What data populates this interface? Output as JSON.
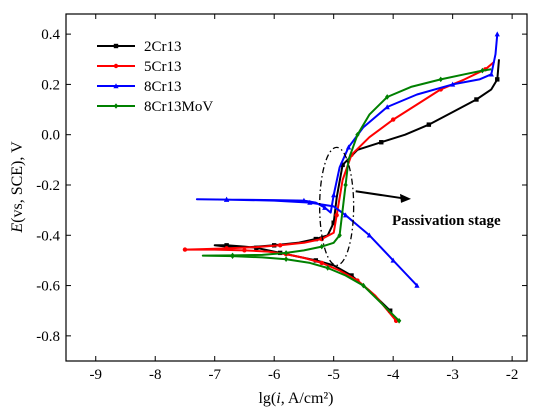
{
  "chart_data": {
    "type": "line",
    "xlabel": "lg(i, A/cm²)",
    "ylabel": "E(vs, SCE), V",
    "xlim": [
      -9.5,
      -1.75
    ],
    "ylim": [
      -0.9,
      0.48
    ],
    "xticks": [
      -9,
      -8,
      -7,
      -6,
      -5,
      -4,
      -3,
      -2
    ],
    "yticks": [
      -0.8,
      -0.6,
      -0.4,
      -0.2,
      0.0,
      0.2,
      0.4
    ],
    "xtick_labels": [
      "-9",
      "-8",
      "-7",
      "-6",
      "-5",
      "-4",
      "-3",
      "-2"
    ],
    "ytick_labels": [
      "-0.8",
      "-0.6",
      "-0.4",
      "-0.2",
      "0.0",
      "0.2",
      "0.4"
    ],
    "legend_position": "top-left",
    "annotation": "Passivation stage",
    "series": [
      {
        "name": "2Cr13",
        "color": "#000000",
        "marker": "square",
        "points": [
          [
            -4.05,
            -0.7
          ],
          [
            -4.4,
            -0.62
          ],
          [
            -4.7,
            -0.56
          ],
          [
            -5.0,
            -0.52
          ],
          [
            -5.3,
            -0.5
          ],
          [
            -5.6,
            -0.485
          ],
          [
            -5.9,
            -0.47
          ],
          [
            -6.1,
            -0.46
          ],
          [
            -6.3,
            -0.45
          ],
          [
            -6.5,
            -0.445
          ],
          [
            -6.8,
            -0.44
          ],
          [
            -7.0,
            -0.44
          ],
          [
            -6.8,
            -0.445
          ],
          [
            -6.4,
            -0.447
          ],
          [
            -6.0,
            -0.44
          ],
          [
            -5.6,
            -0.43
          ],
          [
            -5.3,
            -0.415
          ],
          [
            -5.1,
            -0.4
          ],
          [
            -5.0,
            -0.35
          ],
          [
            -4.95,
            -0.25
          ],
          [
            -4.85,
            -0.12
          ],
          [
            -4.6,
            -0.06
          ],
          [
            -4.2,
            -0.03
          ],
          [
            -3.8,
            0.0
          ],
          [
            -3.4,
            0.04
          ],
          [
            -3.0,
            0.09
          ],
          [
            -2.6,
            0.14
          ],
          [
            -2.35,
            0.18
          ],
          [
            -2.25,
            0.22
          ],
          [
            -2.22,
            0.3
          ]
        ]
      },
      {
        "name": "5Cr13",
        "color": "#ff0000",
        "marker": "circle",
        "points": [
          [
            -3.95,
            -0.74
          ],
          [
            -4.3,
            -0.64
          ],
          [
            -4.6,
            -0.58
          ],
          [
            -4.9,
            -0.54
          ],
          [
            -5.2,
            -0.51
          ],
          [
            -5.5,
            -0.49
          ],
          [
            -5.8,
            -0.475
          ],
          [
            -6.1,
            -0.465
          ],
          [
            -6.5,
            -0.46
          ],
          [
            -7.0,
            -0.457
          ],
          [
            -7.5,
            -0.457
          ],
          [
            -7.2,
            -0.455
          ],
          [
            -6.8,
            -0.452
          ],
          [
            -6.3,
            -0.447
          ],
          [
            -5.9,
            -0.44
          ],
          [
            -5.5,
            -0.43
          ],
          [
            -5.2,
            -0.415
          ],
          [
            -5.0,
            -0.39
          ],
          [
            -4.95,
            -0.32
          ],
          [
            -4.85,
            -0.18
          ],
          [
            -4.7,
            -0.08
          ],
          [
            -4.4,
            -0.01
          ],
          [
            -4.0,
            0.06
          ],
          [
            -3.6,
            0.12
          ],
          [
            -3.2,
            0.18
          ],
          [
            -2.8,
            0.22
          ],
          [
            -2.45,
            0.26
          ],
          [
            -2.3,
            0.29
          ]
        ]
      },
      {
        "name": "8Cr13",
        "color": "#0000ff",
        "marker": "triangle",
        "points": [
          [
            -3.6,
            -0.6
          ],
          [
            -3.8,
            -0.55
          ],
          [
            -4.0,
            -0.5
          ],
          [
            -4.2,
            -0.45
          ],
          [
            -4.4,
            -0.4
          ],
          [
            -4.6,
            -0.36
          ],
          [
            -4.8,
            -0.32
          ],
          [
            -5.0,
            -0.285
          ],
          [
            -5.4,
            -0.27
          ],
          [
            -6.0,
            -0.262
          ],
          [
            -6.8,
            -0.258
          ],
          [
            -7.3,
            -0.257
          ],
          [
            -6.8,
            -0.258
          ],
          [
            -6.0,
            -0.26
          ],
          [
            -5.5,
            -0.262
          ],
          [
            -5.3,
            -0.27
          ],
          [
            -5.15,
            -0.29
          ],
          [
            -5.05,
            -0.31
          ],
          [
            -5.0,
            -0.24
          ],
          [
            -4.9,
            -0.13
          ],
          [
            -4.75,
            -0.05
          ],
          [
            -4.5,
            0.03
          ],
          [
            -4.1,
            0.11
          ],
          [
            -3.6,
            0.16
          ],
          [
            -3.0,
            0.2
          ],
          [
            -2.55,
            0.22
          ],
          [
            -2.35,
            0.24
          ],
          [
            -2.28,
            0.32
          ],
          [
            -2.25,
            0.4
          ]
        ]
      },
      {
        "name": "8Cr13MoV",
        "color": "#008000",
        "marker": "diamond",
        "points": [
          [
            -3.9,
            -0.74
          ],
          [
            -4.2,
            -0.67
          ],
          [
            -4.5,
            -0.6
          ],
          [
            -4.8,
            -0.56
          ],
          [
            -5.1,
            -0.53
          ],
          [
            -5.4,
            -0.51
          ],
          [
            -5.8,
            -0.495
          ],
          [
            -6.2,
            -0.488
          ],
          [
            -6.7,
            -0.483
          ],
          [
            -7.2,
            -0.481
          ],
          [
            -6.7,
            -0.48
          ],
          [
            -6.2,
            -0.478
          ],
          [
            -5.8,
            -0.47
          ],
          [
            -5.5,
            -0.46
          ],
          [
            -5.2,
            -0.445
          ],
          [
            -5.0,
            -0.43
          ],
          [
            -4.9,
            -0.4
          ],
          [
            -4.85,
            -0.3
          ],
          [
            -4.8,
            -0.2
          ],
          [
            -4.75,
            -0.1
          ],
          [
            -4.6,
            0.0
          ],
          [
            -4.4,
            0.08
          ],
          [
            -4.1,
            0.15
          ],
          [
            -3.7,
            0.19
          ],
          [
            -3.2,
            0.22
          ],
          [
            -2.8,
            0.24
          ],
          [
            -2.5,
            0.255
          ],
          [
            -2.35,
            0.26
          ]
        ]
      }
    ]
  }
}
